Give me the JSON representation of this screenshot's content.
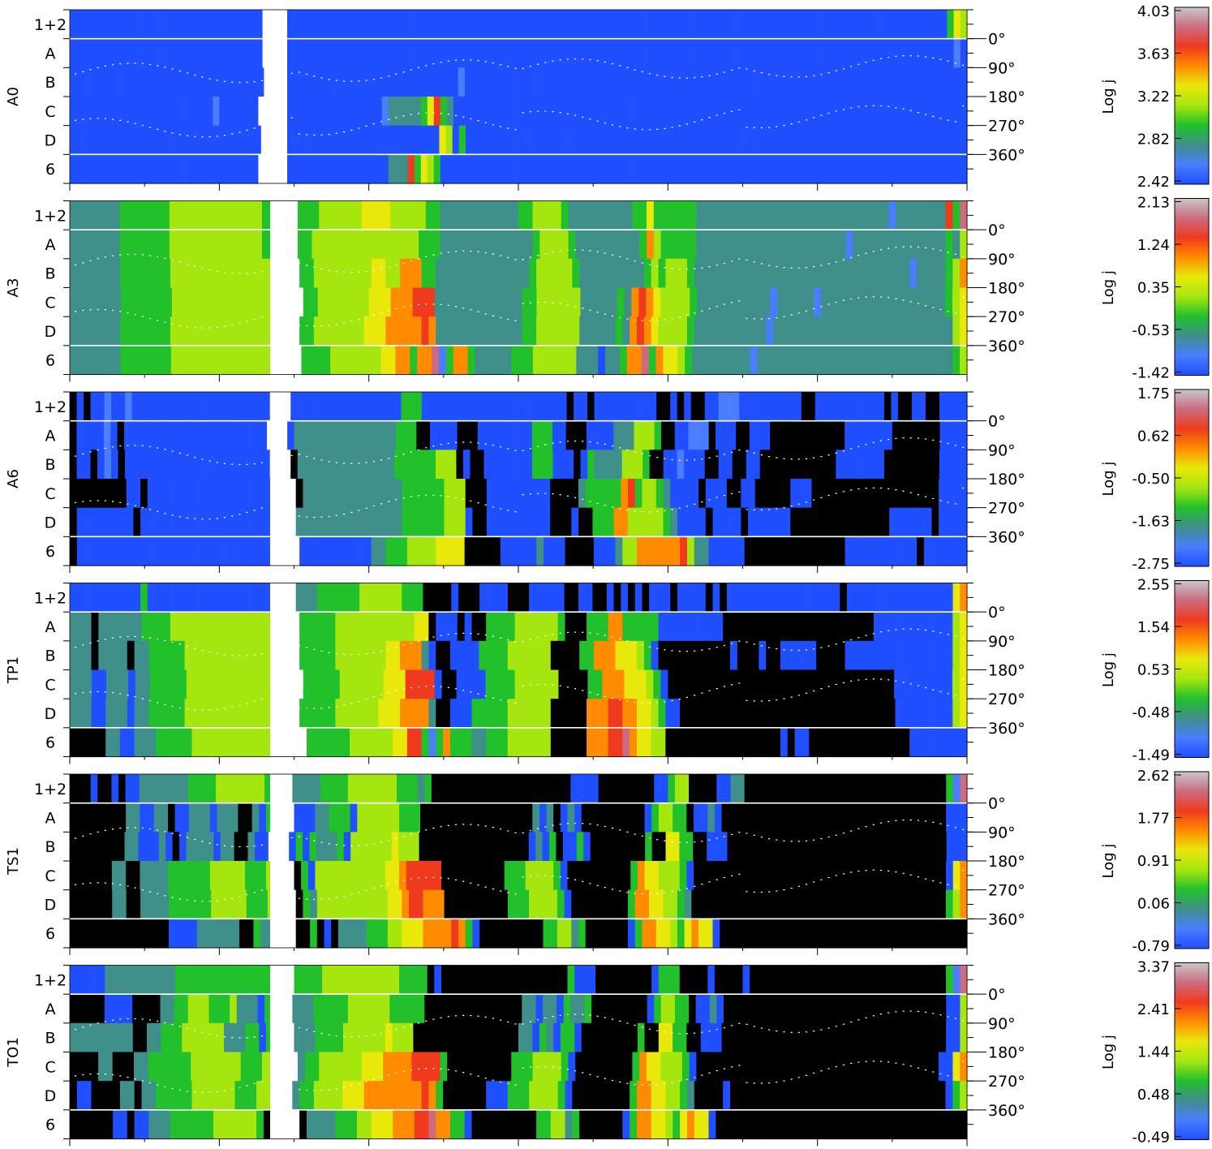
{
  "chart_data": {
    "type": "heatmap",
    "row_labels": [
      "1+2",
      "A",
      "B",
      "C",
      "D",
      "6"
    ],
    "angle_ticks": [
      "0°",
      "90°",
      "180°",
      "270°",
      "360°"
    ],
    "colorbar_label": "Log j",
    "colors": {
      "black": "#000000",
      "blue": "#1f4fff",
      "lightblue": "#4a7dff",
      "teal": "#3f8f8a",
      "green": "#22c02b",
      "lime": "#a5e60f",
      "yellow": "#e8e80a",
      "orange": "#ff8c00",
      "red": "#f03a1e",
      "pink": "#cc6b80",
      "grey": "#c8c8c8"
    },
    "panels": [
      {
        "name": "A0",
        "colorbar_ticks": [
          "4.03",
          "3.63",
          "3.22",
          "2.82",
          "2.42"
        ],
        "rows": [
          "bbbbbbbbbbbbbbbbbbbbbbbbbbbbb___bbbbbbbbbbbbbbbbbbbbbbbbbbbbbbbbbbbbbbbbbbbbbbbbbbbbbbbbbbbbbbbbbbbbbbbbbbbbbbbbbbbbbbbbbbbbbbbbbbbbgyl",
          "bbbbbbbbbbbbbbbbbbbbbbbbbbbbb___bbbbbbbbbbbbbbbbbbbbbbbbbbbbbbbbbbbbbbbbbbbbbbbbbbbbbbbbbbbbbbbbbbbbbbbbbbbbbbbbbbbbbbbbbbbbbbbbbbbbbwb",
          "bbbbbbbbbbbbbbbbbbbbbbbbbbbbb___bbbbbbbbbbbbbbbbbbbbbbbbbbwbbbbbbbbbbbbbbbbbbbbbbbbbbbbbbbbbbbbbbbbbbbbbbbbbbbbbbbbbbbbbbbbbbbbbbbbbbb",
          "bbbbbbbbbbbbbbbbbbbbbbwbbbbbb___bbbbbbbbbbbbbbbbwtttttgyrgtbbbbbbbbbbbbbbbbbbbbbbbbbbbbbbbbbbbbbbbbbbbbbbbbbbbbbbbbbbbbbbbbbbbbbbbbbbbbbbb",
          "bbbbbbbbbbbbbbbbbbbbbbbbbbbbb___bbbbbbbbbbbbbbbbbbbbbbbbylbgbbbbbbbbbbbbbbbbbbbbbbbbbbbbbbbbbbbbbbbbbbbbbbbbbbbbbbbbbbbbbbbbbbbbbbbbbbbb",
          "bbbbbbbbbbbbbbbbbbbbbbbbbbbbb___bbbbbbbbbbbbbbbbbtttrgylgbbbbbbbbbbbbbbbbbbbbbbbbbbbbbbbbbbbbbbbbbbbbbbbbbbbbbbbbbbbbbbbbbbbbbbbbbbbbbbbbb"
        ]
      },
      {
        "name": "A3",
        "colorbar_ticks": [
          "2.13",
          "1.24",
          "0.35",
          "-0.53",
          "-1.42"
        ],
        "rows": [
          "tttttttggggggglllllllllllllgg___gggllllllyyyylllllggtttttttttttggllllgtttttttttggyggggggtttttttttttttttttttttttttttwtttttttrgp",
          "tttttttggggggglllllllllllllgg___gglllllllllllllllgggtttttttttttttgllllgtttttttttgolgggggtttttttttttttttttttttwtttttttttttttgtl",
          "tttttttgggggggllllllllllllllg___ggllllllllyylloooggtttttttttttttglllllgtttttttttglglllgttttttttttttttttttttttttttttttwttttglo",
          "tttttttggggggglllllllllllllll___gglllllllyyyooorrrttttttttttttgglllllltttttgtoroyllllgttttttttttwtttttwtttttttttttttttttgly",
          "tttttttggggggglllllllllllllll___gglllllllyyyooooorottttttttttttgglllllltttttgtoroyllllgttttttttttwtttttttttttttttttttttttttly",
          "tttttttggggggglllllllllllllll___gggglllllllyyoogoopwgoogtttttggglllllltttbttgoopgoyylgttttttttwtttttttttttttttttttttttttttgl"
        ]
      },
      {
        "name": "A6",
        "colorbar_ticks": [
          "1.75",
          "0.62",
          "-0.50",
          "-1.63",
          "-2.75"
        ],
        "rows": [
          "kbkbbwbbwbbbbbbbbbbbbbbbbbbbb___bbbbbbbbbbbbbbbbgggbbbbbbbbbbbbbbbbbbbbbkbbkbbbbbbbbbkkbkbkkbbwwwbbbbbbbbbkkbbbbbbbbbbkbkkbbkkbbbb",
          "kbbbbwbkbbbbbbbbbbbbbbbbbbbbb___btttttttttttttttgggkkbbbbkkkbbbbbbbbgggbbkkkbbbbtttlllgkkbbwwwkbbbkkbbbkkkkkkkkkkkbbbbbbbkkkkkkkbbbb",
          "kbbkbwbkbbbbbbbbbbbbbbbbbbbbb___kttttttttttttttgggggglllkbkkbbbbbbbgggbbbkbgttttlllgkkbbwbbbkkbbkkbbkkkkkkkkkkkbbbbbbbkkkkkkkkbbbb",
          "kkkkkkkkbbkbbbbbbbbbbbbbbbbbb___kttttttttttttttgggggglllkkkbbbbbbbbbkkkktgggggorgllgtbbbbkbbbkkbbkkkkkbbbkkkkkkkkkkkkkkkkkkbbbb",
          "kbbbbbbbbkbbbbbbbbbbbbbbbbbbb___tttttttttttttttgggggglllbkkbbbbbbbbbkkkbkkgggoolllllgtbbbbkbbbbkbbbbbbkkkkkkkkkkkkkkbbbbbbkbbbb",
          "kbbbbbbbbbbbbbbbbbbbbbbbbbbbb___bbbbbbbbbbttgggllllyyyykkkkkbbbbbtbbbkkkkbbbtlloooooorlttbbbbbkkkkkkkkkkkkkkbbbbbbbbbbkbbbbbb"
        ]
      },
      {
        "name": "TP1",
        "colorbar_ticks": [
          "2.55",
          "1.54",
          "0.53",
          "-0.48",
          "-1.49"
        ],
        "rows": [
          "bbbbbbbbbbgbbbbbbbbbbbbbbbbbb___tttggggggllllllgggkkkkbkkkbbbbkkkbbbbbkkbbkkbkbkbkbbbkbbbbkbkbbbbbbbbbbbbbbbbkbbbbbbbbbbbbbbbyo",
          "tttkttttttgggglllllllllllllll___ggggglllllllllllyykbbbkbkkggggllllllgkkkgggoogggggbbbbbbbbbkkkkkkkkkkkkkkkkkkkkkbbbbbbbbbbbly",
          "tttkttttkttggggglllllllllllll___ggggglllllllyyoootbkkbbbbggggllllllkkkkggoooyyylgbkkkkkkkkkkbkkkbkkbbbbbkkkkbbbbbbbbbbbbbbbly",
          "tttbbtttbttggggglllllllllllll___gggggllllllyyyrrrrbkkbbbbggggllllllkkkkggoooyyylgbkkkkkkkkkkkkkkkkkkkkkkkkkkkkkkkbbbbbbbbly",
          "tttbbtttbttggggglllllllllllll___gggggllllllyyyooootkkbbbgggggllllllkkkkkooorrooyylgbbkkkkkkkkkkkkkkkkkkkkkkkkkkkkkkbbbbbbbbly",
          "kkkkkttbbtttggggglllllllllllll___ggggggllllllyyrrgwgogggttgggllllllkkkkkooorrpoyyllkkkkkkkkkkkkkkkkbkbbkkkkkkkkkkkkkkbbbbbbbb"
        ]
      },
      {
        "name": "TS1",
        "colorbar_ticks": [
          "2.62",
          "1.77",
          "0.91",
          "0.06",
          "-0.79"
        ],
        "rows": [
          "kkkbkkbkbbtttttttgggglllllllg___ttttgggglllllllgggtgkkkkkkkkkkkkkkkkkkkkbbbbkkkkkkkkbbgllkkkkbbttkkkkkkkkkkkkkkkkkkkkkkkkkkkkkgwp",
          "kkkkkkkkttbbttkbbtttbtttkktbg___bbbttgggbllllllgggkkkkkkkkkkkkkkkktbtkbtbkkkkkkkkkbgllggkbbtbkkkkkkkkkkkkkkkkkkkkkkkkkkkkkkkkbbb",
          "kkkkkkkkttbbbtbkbttttbttkktbb___bgbgtttgbllllllylllkkkkkkkkkkkkkkkkbtbgkbbgbkkkkkkkkgkkyyggkkbbbkkkkkkkkkkkkkkkkkkkkkkkkkkkkkkkkbbb",
          "kkkkkkttkkttttgggggglllllgggl___kgbllllllllllyyorrrrrkkkkkkkkkgggllllgbkkkkkkkkkgoyylllgbkkkkkkkkkkkkkkkkkkkkkkkkkkkkkkkkkkkkbyo",
          "kkkkkkttkkttttgggggglllllgggl___kgtllllllllllyyorroookkkkkkkkkgggllllgbkkkkkkkkgooyyllgtkkkkkkkkkkkkkkkkkkkkkkkkkkkkkkkkkkkkglo",
          "kkkkkkkkkkkkkkbbbbttttttkkgtt___kkgkbkttttgggllyyyoooorogbkkkkkkkkkgglltgkkkkkkbgooyylgyoyybkkkkkkkkkkkkkkkkkkkkkkkkkkkkkkkkkkk"
        ]
      },
      {
        "name": "TO1",
        "colorbar_ticks": [
          "3.37",
          "2.41",
          "1.44",
          "0.48",
          "-0.49"
        ],
        "rows": [
          "bbbbbttttttttttgggggggggggggg___gggglllllllllllggggkbkkkkkkkkkkkkkkkkkkgbbbkkkkkkkkbgggkkkkbkkkkbkkkkkkkkkkkkkkkkkkkkkkkkkkkkgwp",
          "kkkkkbbbbkkkkttgglllgggltttbg___tttgggggllllllgggggkkkkkkkkkkkkkkttbttbgttgkkkkkkkkbgllggkbbtbkkkkkkkkkkkkkkkkkkkkkkkkkkkkkkkkbbl",
          "tttttttttkkttggglllllltttggbg___tttggggllllllylllkkkkkkkkkkkkkkkttbgtbggbkkkkkkkkgkkyyggkkbbbkkkkkkkkkkkkkkkkkkkkkkkkkkkkkkkkbbl",
          "kkkkttkkkttgggggglllllllgggll___tggllllllyyyoooorrrrgkkkkkkkkkgggllllgbkkkkkkkkgoyylllgbkkkkkkkkkkkkkkkkkkkkkkkkkkkkkkkkkkbbyo",
          "kbbkkkkttkttgggggllllllgggll___tggllllyyyoooooooorogkkkkkkbbbgggllllgbkkkkkkkkgooyyllgtkkkkbkkkkkkkkkkkkkkkkkkkkkkkkkkkkkkbgl",
          "kkkkkkbbkbbtttggggggllllllgkb___kttttgggllyyyooorrpooggbkkkkkkkkkgglltgkkkkkkbgooyylgyoyybkkkkkkkkkkkkkkkkkkkkkkkkkkkkkkkkkkk"
        ]
      }
    ]
  }
}
